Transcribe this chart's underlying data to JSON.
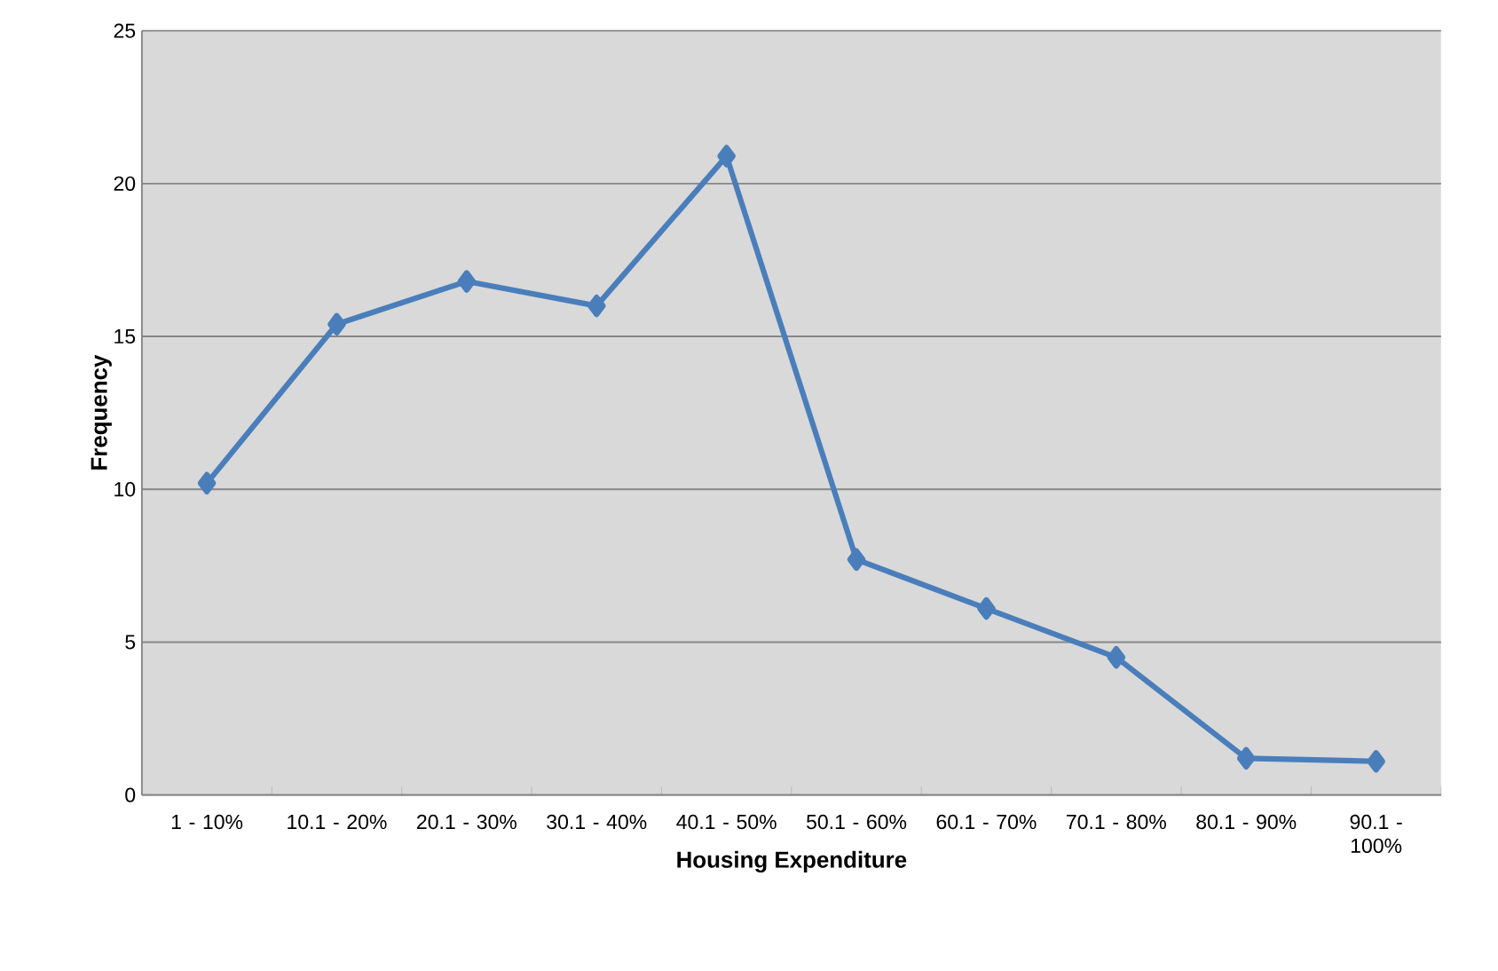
{
  "chart_data": {
    "type": "line",
    "xlabel": "Housing Expenditure",
    "ylabel": "Frequency",
    "categories": [
      "1 - 10%",
      "10.1 - 20%",
      "20.1 - 30%",
      "30.1 - 40%",
      "40.1 - 50%",
      "50.1 - 60%",
      "60.1 - 70%",
      "70.1 - 80%",
      "80.1 - 90%",
      "90.1 - 100%"
    ],
    "series": [
      {
        "color": "#4a7ebb",
        "values": [
          10.2,
          15.4,
          16.8,
          16.0,
          20.9,
          7.7,
          6.1,
          4.5,
          1.2,
          1.1
        ]
      }
    ],
    "ylim": [
      0,
      25
    ],
    "yticks": [
      0,
      5,
      10,
      15,
      20,
      25
    ],
    "grid": "y",
    "marker": "diamond",
    "line_style": "solid"
  }
}
